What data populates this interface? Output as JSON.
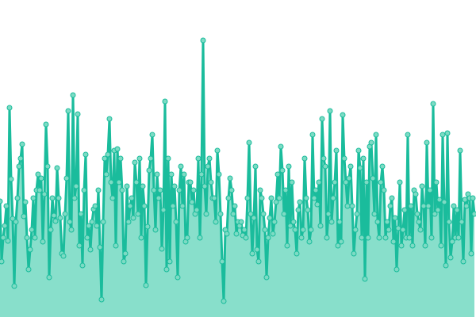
{
  "chart_data": {
    "type": "area",
    "title": "",
    "xlabel": "",
    "ylabel": "",
    "grid": false,
    "legend": "none",
    "ylim": [
      0,
      400
    ],
    "colors": {
      "line": "#1abc9c",
      "fill": "#88dfcb",
      "point_fill": "#7ddbc4",
      "point_stroke": "#1abc9c"
    },
    "values": [
      146,
      70,
      100,
      115,
      140,
      96,
      264,
      174,
      124,
      39,
      120,
      150,
      190,
      200,
      218,
      127,
      145,
      100,
      60,
      85,
      110,
      150,
      100,
      160,
      180,
      160,
      175,
      95,
      155,
      243,
      190,
      50,
      110,
      150,
      128,
      121,
      188,
      150,
      125,
      80,
      77,
      130,
      175,
      260,
      120,
      110,
      280,
      150,
      165,
      256,
      90,
      130,
      65,
      160,
      205,
      100,
      115,
      85,
      120,
      136,
      140,
      115,
      160,
      88,
      22,
      120,
      200,
      180,
      205,
      250,
      170,
      150,
      210,
      90,
      212,
      170,
      200,
      160,
      70,
      80,
      165,
      120,
      140,
      150,
      125,
      195,
      170,
      130,
      200,
      100,
      165,
      140,
      40,
      114,
      185,
      200,
      230,
      160,
      110,
      180,
      150,
      160,
      86,
      135,
      272,
      60,
      200,
      70,
      180,
      140,
      165,
      120,
      50,
      160,
      190,
      140,
      180,
      95,
      100,
      170,
      170,
      145,
      160,
      130,
      135,
      200,
      100,
      180,
      349,
      165,
      130,
      190,
      200,
      170,
      150,
      150,
      120,
      210,
      180,
      130,
      70,
      20,
      110,
      105,
      150,
      175,
      160,
      130,
      140,
      105,
      120,
      115,
      120,
      103,
      110,
      100,
      150,
      220,
      130,
      80,
      125,
      190,
      85,
      70,
      160,
      150,
      130,
      110,
      50,
      100,
      125,
      150,
      105,
      120,
      145,
      180,
      150,
      215,
      185,
      130,
      160,
      90,
      190,
      115,
      170,
      120,
      110,
      80,
      135,
      145,
      100,
      110,
      200,
      150,
      135,
      95,
      110,
      230,
      150,
      160,
      142,
      170,
      115,
      250,
      200,
      190,
      100,
      130,
      260,
      120,
      150,
      170,
      210,
      90,
      120,
      95,
      255,
      200,
      170,
      140,
      175,
      190,
      140,
      80,
      110,
      130,
      210,
      188,
      100,
      200,
      48,
      170,
      100,
      215,
      220,
      175,
      130,
      230,
      120,
      100,
      170,
      190,
      160,
      100,
      120,
      110,
      140,
      150,
      95,
      125,
      60,
      112,
      170,
      90,
      110,
      135,
      100,
      230,
      100,
      140,
      90,
      160,
      155,
      130,
      120,
      110,
      165,
      140,
      90,
      220,
      140,
      160,
      100,
      269,
      130,
      170,
      135,
      148,
      90,
      230,
      145,
      65,
      232,
      120,
      75,
      95,
      140,
      100,
      135,
      100,
      210,
      120,
      70,
      148,
      140,
      155,
      150,
      80,
      150,
      130
    ]
  }
}
